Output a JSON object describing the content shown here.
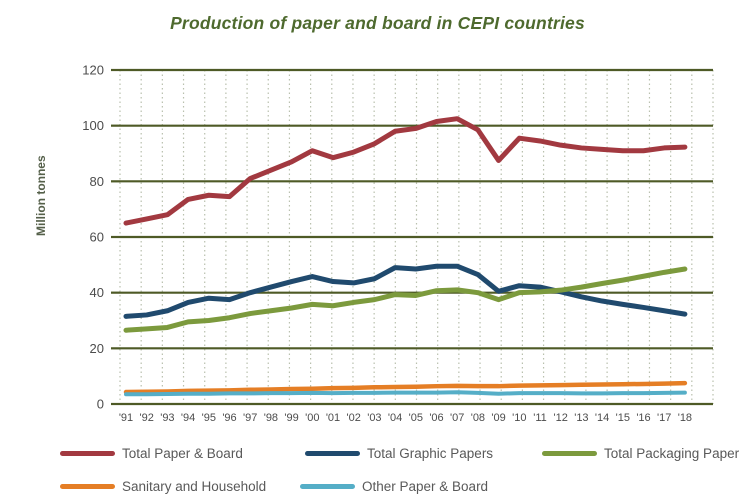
{
  "chart_data": {
    "type": "line",
    "title": "Production of paper and board in CEPI countries",
    "ylabel": "Million tonnes",
    "xlabel": "",
    "ylim": [
      0,
      120
    ],
    "yticks": [
      0,
      20,
      40,
      60,
      80,
      100,
      120
    ],
    "grid": {
      "horizontal": "solid",
      "vertical": "dotted"
    },
    "legend_position": "bottom",
    "x_labels": [
      "'91",
      "'92",
      "'93",
      "'94",
      "'95",
      "'96",
      "'97",
      "'98",
      "'99",
      "'00",
      "'01",
      "'02",
      "'03",
      "'04",
      "'05",
      "'06",
      "'07",
      "'08",
      "'09",
      "'10",
      "'11",
      "'12",
      "'13",
      "'14",
      "'15",
      "'16",
      "'17",
      "'18"
    ],
    "series": [
      {
        "name": "Total Paper & Board",
        "color": "#a23940",
        "values": [
          65,
          66.5,
          68,
          73.5,
          75,
          74.5,
          81,
          84,
          87,
          91,
          88.5,
          90.5,
          93.5,
          98,
          99,
          101.5,
          102.5,
          98.5,
          87.5,
          95.5,
          94.5,
          93,
          92,
          91.5,
          91,
          91,
          92,
          92.3
        ]
      },
      {
        "name": "Total Graphic Papers",
        "color": "#204a6e",
        "values": [
          31.5,
          32,
          33.5,
          36.5,
          38,
          37.5,
          40,
          42,
          44,
          45.8,
          44,
          43.5,
          45,
          49,
          48.5,
          49.5,
          49.5,
          46.5,
          40.5,
          42.5,
          42,
          40.3,
          38.5,
          37,
          35.8,
          34.7,
          33.5,
          32.3
        ]
      },
      {
        "name": "Total Packaging Paper",
        "color": "#7c9a3d",
        "values": [
          26.5,
          27,
          27.5,
          29.5,
          30,
          31,
          32.5,
          33.5,
          34.5,
          35.8,
          35.3,
          36.5,
          37.5,
          39.3,
          39,
          40.7,
          41,
          40,
          37.5,
          40,
          40.3,
          40.9,
          42,
          43.3,
          44.5,
          45.9,
          47.3,
          48.5
        ]
      },
      {
        "name": "Sanitary and Household",
        "color": "#e57e25",
        "values": [
          4.3,
          4.4,
          4.5,
          4.7,
          4.8,
          4.9,
          5.1,
          5.2,
          5.4,
          5.5,
          5.7,
          5.8,
          6.0,
          6.1,
          6.2,
          6.4,
          6.5,
          6.4,
          6.4,
          6.6,
          6.7,
          6.8,
          6.9,
          7.0,
          7.1,
          7.2,
          7.3,
          7.5
        ]
      },
      {
        "name": "Other Paper & Board",
        "color": "#55aec7",
        "values": [
          3.5,
          3.5,
          3.6,
          3.7,
          3.7,
          3.8,
          3.8,
          3.9,
          3.9,
          4.0,
          3.9,
          4.0,
          4.0,
          4.1,
          4.1,
          4.1,
          4.2,
          4.0,
          3.7,
          3.9,
          3.9,
          3.9,
          3.8,
          3.8,
          3.9,
          3.9,
          4.0,
          4.1
        ]
      }
    ],
    "colors": {
      "gridline": "#4e5a26",
      "vertical_gridline": "#b9c0ae",
      "tick_text": "#4c4c4c",
      "title_text": "#4e6a2e",
      "legend_text": "#595959"
    }
  }
}
